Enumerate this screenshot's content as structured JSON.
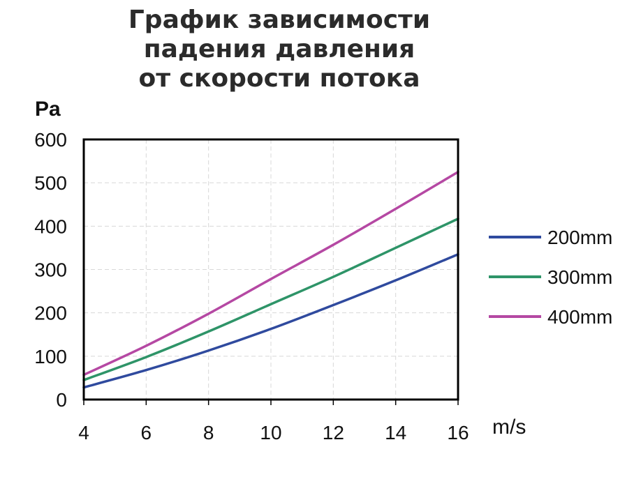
{
  "title_lines": [
    "График зависимости",
    "падения давления",
    "от скорости потока"
  ],
  "chart_data": {
    "type": "line",
    "title": "График зависимости падения давления от скорости потока",
    "ylabel": "Pa",
    "xlabel": "m/s",
    "xlim": [
      4,
      16
    ],
    "ylim": [
      0,
      600
    ],
    "x_ticks": [
      4,
      6,
      8,
      10,
      12,
      14,
      16
    ],
    "y_ticks": [
      0,
      100,
      200,
      300,
      400,
      500,
      600
    ],
    "grid": true,
    "legend_position": "right",
    "x": [
      4,
      6,
      8,
      10,
      12,
      14,
      16
    ],
    "series": [
      {
        "name": "200mm",
        "color": "#2f4a9e",
        "values": [
          28,
          68,
          113,
          163,
          218,
          275,
          335
        ]
      },
      {
        "name": "300mm",
        "color": "#2e9468",
        "values": [
          45,
          98,
          157,
          220,
          283,
          350,
          417
        ]
      },
      {
        "name": "400mm",
        "color": "#b548a3",
        "values": [
          57,
          124,
          198,
          278,
          357,
          440,
          525
        ]
      }
    ]
  }
}
